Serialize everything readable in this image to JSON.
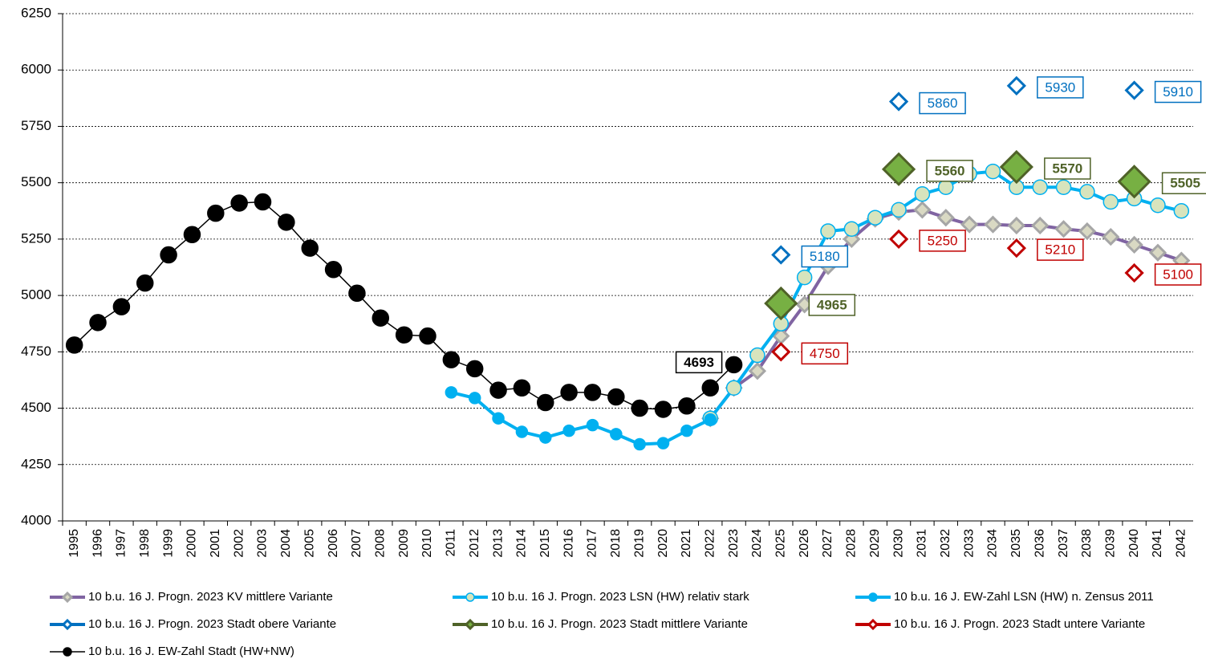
{
  "chart_data": {
    "type": "line",
    "categories": [
      "1995",
      "1996",
      "1997",
      "1998",
      "1999",
      "2000",
      "2001",
      "2002",
      "2003",
      "2004",
      "2005",
      "2006",
      "2007",
      "2008",
      "2009",
      "2010",
      "2011",
      "2012",
      "2013",
      "2014",
      "2015",
      "2016",
      "2017",
      "2018",
      "2019",
      "2020",
      "2021",
      "2022",
      "2023",
      "2024",
      "2025",
      "2026",
      "2027",
      "2028",
      "2029",
      "2030",
      "2031",
      "2032",
      "2033",
      "2034",
      "2035",
      "2036",
      "2037",
      "2038",
      "2039",
      "2040",
      "2041",
      "2042"
    ],
    "ylim": [
      4000,
      6250
    ],
    "yticks": [
      4000,
      4250,
      4500,
      4750,
      5000,
      5250,
      5500,
      5750,
      6000,
      6250
    ],
    "grid": true,
    "series": [
      {
        "name": "10 b.u. 16 J. Progn. 2023 KV mittlere Variante",
        "color": "#8064a2",
        "marker": "diamond",
        "marker_fill": "#d9d9c3",
        "marker_stroke": "#a6a6a6",
        "marker_size": 9,
        "values": [
          null,
          null,
          null,
          null,
          null,
          null,
          null,
          null,
          null,
          null,
          null,
          null,
          null,
          null,
          null,
          null,
          null,
          null,
          null,
          null,
          null,
          null,
          null,
          null,
          null,
          null,
          null,
          4455,
          4590,
          4665,
          4820,
          4960,
          5130,
          5250,
          5340,
          5370,
          5380,
          5345,
          5315,
          5315,
          5310,
          5310,
          5295,
          5285,
          5260,
          5225,
          5190,
          5155
        ]
      },
      {
        "name": "10 b.u. 16 J. Progn. 2023 LSN (HW) relativ stark",
        "color": "#00b0f0",
        "marker": "circle",
        "marker_fill": "#d7e4bd",
        "marker_stroke": "#00b0f0",
        "marker_size": 9,
        "values": [
          null,
          null,
          null,
          null,
          null,
          null,
          null,
          null,
          null,
          null,
          null,
          null,
          null,
          null,
          null,
          null,
          null,
          null,
          null,
          null,
          null,
          null,
          null,
          null,
          null,
          null,
          null,
          4455,
          4590,
          4735,
          4875,
          5080,
          5285,
          5295,
          5345,
          5380,
          5450,
          5480,
          5540,
          5550,
          5480,
          5480,
          5480,
          5460,
          5415,
          5430,
          5400,
          5375
        ]
      },
      {
        "name": "10 b.u. 16 J. EW-Zahl LSN (HW) n. Zensus 2011",
        "color": "#00b0f0",
        "marker": "circle",
        "marker_fill": "#00b0f0",
        "marker_stroke": "#00b0f0",
        "marker_size": 7,
        "values": [
          null,
          null,
          null,
          null,
          null,
          null,
          null,
          null,
          null,
          null,
          null,
          null,
          null,
          null,
          null,
          null,
          4570,
          4545,
          4455,
          4395,
          4370,
          4400,
          4425,
          4385,
          4340,
          4345,
          4400,
          4450,
          null,
          null,
          null,
          null,
          null,
          null,
          null,
          null,
          null,
          null,
          null,
          null,
          null,
          null,
          null,
          null,
          null,
          null,
          null,
          null
        ]
      },
      {
        "name": "10 b.u. 16 J. Progn. 2023 Stadt obere Variante",
        "color": "#0070c0",
        "marker": "diamond",
        "marker_fill": "#ffffff",
        "marker_stroke": "#0070c0",
        "marker_size": 10,
        "data_labels": "all",
        "values": [
          null,
          null,
          null,
          null,
          null,
          null,
          null,
          null,
          null,
          null,
          null,
          null,
          null,
          null,
          null,
          null,
          null,
          null,
          null,
          null,
          null,
          null,
          null,
          null,
          null,
          null,
          null,
          null,
          null,
          null,
          5180,
          null,
          null,
          null,
          null,
          5860,
          null,
          null,
          null,
          null,
          5930,
          null,
          null,
          null,
          null,
          5910,
          null,
          null
        ]
      },
      {
        "name": "10 b.u. 16 J. Progn. 2023 Stadt mittlere Variante",
        "color": "#4f6228",
        "marker": "diamond",
        "marker_fill": "#77b043",
        "marker_stroke": "#4f6228",
        "marker_size": 19,
        "data_labels": "all",
        "values": [
          null,
          null,
          null,
          null,
          null,
          null,
          null,
          null,
          null,
          null,
          null,
          null,
          null,
          null,
          null,
          null,
          null,
          null,
          null,
          null,
          null,
          null,
          null,
          null,
          null,
          null,
          null,
          null,
          null,
          null,
          4965,
          null,
          null,
          null,
          null,
          5560,
          null,
          null,
          null,
          null,
          5570,
          null,
          null,
          null,
          null,
          5505,
          null,
          null
        ]
      },
      {
        "name": "10 b.u. 16 J. Progn. 2023 Stadt untere Variante",
        "color": "#c00000",
        "marker": "diamond",
        "marker_fill": "#ffffff",
        "marker_stroke": "#c00000",
        "marker_size": 10,
        "data_labels": "all",
        "values": [
          null,
          null,
          null,
          null,
          null,
          null,
          null,
          null,
          null,
          null,
          null,
          null,
          null,
          null,
          null,
          null,
          null,
          null,
          null,
          null,
          null,
          null,
          null,
          null,
          null,
          null,
          null,
          null,
          null,
          null,
          4750,
          null,
          null,
          null,
          null,
          5250,
          null,
          null,
          null,
          null,
          5210,
          null,
          null,
          null,
          null,
          5100,
          null,
          null
        ]
      },
      {
        "name": "10 b.u. 16 J. EW-Zahl Stadt (HW+NW)",
        "color": "#000000",
        "marker": "circle",
        "marker_fill": "#000000",
        "marker_stroke": "#000000",
        "marker_size": 10,
        "data_labels": "last",
        "values": [
          4780,
          4880,
          4950,
          5055,
          5180,
          5270,
          5365,
          5410,
          5415,
          5325,
          5210,
          5115,
          5010,
          4900,
          4825,
          4820,
          4715,
          4675,
          4580,
          4590,
          4525,
          4570,
          4570,
          4550,
          4500,
          4495,
          4510,
          4590,
          4693,
          null,
          null,
          null,
          null,
          null,
          null,
          null,
          null,
          null,
          null,
          null,
          null,
          null,
          null,
          null,
          null,
          null,
          null,
          null
        ]
      }
    ]
  }
}
